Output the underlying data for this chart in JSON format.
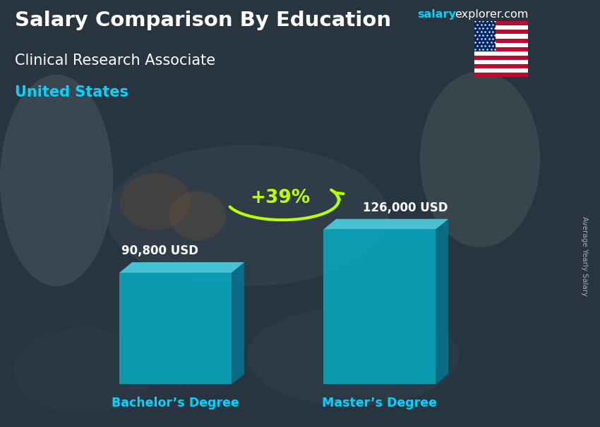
{
  "title_main": "Salary Comparison By Education",
  "title_sub1": "Clinical Research Associate",
  "title_sub2": "United States",
  "site_salary": "salary",
  "site_rest": "explorer.com",
  "categories": [
    "Bachelor’s Degree",
    "Master’s Degree"
  ],
  "values": [
    90800,
    126000
  ],
  "value_labels": [
    "90,800 USD",
    "126,000 USD"
  ],
  "pct_change": "+39%",
  "bar_color_face": "#00bcd4",
  "bar_color_top": "#4dd9ec",
  "bar_color_right": "#007b9a",
  "bar_alpha": 0.75,
  "bg_color": "#3a4a55",
  "title_color": "#ffffff",
  "subtitle_color": "#ffffff",
  "location_color": "#00d4ff",
  "value_label_color": "#ffffff",
  "xlabel_color": "#00d4ff",
  "pct_color": "#b8ff00",
  "arrow_color": "#b8ff00",
  "ylabel_text": "Average Yearly Salary",
  "ylabel_color": "#aaaaaa",
  "site_salary_color": "#00d4ff",
  "site_rest_color": "#ffffff",
  "ylim_max": 155000
}
